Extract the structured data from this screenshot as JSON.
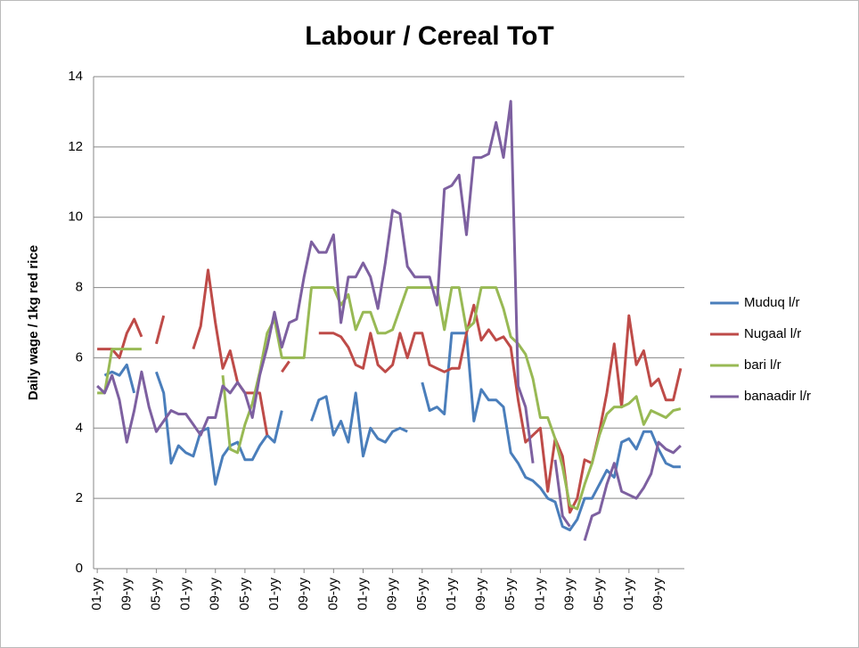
{
  "chart_data": {
    "type": "line",
    "title": "Labour / Cereal ToT",
    "y_label": "Daily wage / 1kg red rice",
    "categories": [
      "01-yy",
      null,
      null,
      null,
      "09-yy",
      null,
      null,
      null,
      "05-yy",
      null,
      null,
      null,
      "01-yy",
      null,
      null,
      null,
      "09-yy",
      null,
      null,
      null,
      "05-yy",
      null,
      null,
      null,
      "01-yy",
      null,
      null,
      null,
      "09-yy",
      null,
      null,
      null,
      "05-yy",
      null,
      null,
      null,
      "01-yy",
      null,
      null,
      null,
      "09-yy",
      null,
      null,
      null,
      "05-yy",
      null,
      null,
      null,
      "01-yy",
      null,
      null,
      null,
      "09-yy",
      null,
      null,
      null,
      "05-yy",
      null,
      null,
      null,
      "01-yy",
      null,
      null,
      null,
      "09-yy",
      null,
      null,
      null,
      "05-yy",
      null,
      null,
      null,
      "01-yy",
      null,
      null,
      null,
      "09-yy",
      null,
      null,
      null
    ],
    "series": [
      {
        "name": "Muduq l/r",
        "color": "#4a7ebb",
        "values": [
          null,
          5.5,
          5.6,
          5.5,
          5.8,
          5.0,
          null,
          null,
          5.6,
          5.0,
          3.0,
          3.5,
          3.3,
          3.2,
          3.9,
          4.0,
          2.4,
          3.2,
          3.5,
          3.6,
          3.1,
          3.1,
          3.5,
          3.8,
          3.6,
          4.5,
          null,
          null,
          null,
          4.2,
          4.8,
          4.9,
          3.8,
          4.2,
          3.6,
          5.0,
          3.2,
          4.0,
          3.7,
          3.6,
          3.9,
          4.0,
          3.9,
          null,
          5.3,
          4.5,
          4.6,
          4.4,
          6.7,
          6.7,
          6.7,
          4.2,
          5.1,
          4.8,
          4.8,
          4.6,
          3.3,
          3.0,
          2.6,
          2.5,
          2.3,
          2.0,
          1.9,
          1.2,
          1.1,
          1.4,
          2.0,
          2.0,
          2.4,
          2.8,
          2.6,
          3.6,
          3.7,
          3.4,
          3.9,
          3.9,
          3.4,
          3.0,
          2.9,
          2.9
        ]
      },
      {
        "name": "Nugaal l/r",
        "color": "#be4b48",
        "values": [
          6.25,
          6.25,
          6.25,
          6.0,
          6.7,
          7.1,
          6.6,
          null,
          6.4,
          7.2,
          null,
          null,
          null,
          6.25,
          6.9,
          8.5,
          7.0,
          5.7,
          6.2,
          5.3,
          5.0,
          5.0,
          5.0,
          3.8,
          null,
          5.6,
          5.9,
          null,
          null,
          null,
          6.7,
          6.7,
          6.7,
          6.6,
          6.3,
          5.8,
          5.7,
          6.7,
          5.8,
          5.6,
          5.8,
          6.7,
          6.0,
          6.7,
          6.7,
          5.8,
          5.7,
          5.6,
          5.7,
          5.7,
          6.7,
          7.5,
          6.5,
          6.8,
          6.5,
          6.6,
          6.3,
          4.8,
          3.6,
          3.8,
          4.0,
          2.2,
          3.7,
          3.2,
          1.6,
          2.0,
          3.1,
          3.0,
          3.9,
          5.0,
          6.4,
          4.6,
          7.2,
          5.8,
          6.2,
          5.2,
          5.4,
          4.8,
          4.8,
          5.7
        ]
      },
      {
        "name": "bari l/r",
        "color": "#98b954",
        "values": [
          5.0,
          5.0,
          6.25,
          6.25,
          6.25,
          6.25,
          6.25,
          null,
          null,
          null,
          null,
          null,
          null,
          null,
          null,
          null,
          null,
          5.5,
          3.4,
          3.3,
          4.1,
          4.7,
          5.6,
          6.7,
          7.1,
          6.0,
          6.0,
          6.0,
          6.0,
          8.0,
          8.0,
          8.0,
          8.0,
          7.5,
          7.8,
          6.8,
          7.3,
          7.3,
          6.7,
          6.7,
          6.8,
          7.4,
          8.0,
          8.0,
          8.0,
          8.0,
          8.0,
          6.8,
          8.0,
          8.0,
          6.8,
          7.0,
          8.0,
          8.0,
          8.0,
          7.4,
          6.6,
          6.4,
          6.1,
          5.4,
          4.3,
          4.3,
          3.7,
          2.9,
          1.8,
          1.7,
          2.4,
          3.0,
          3.8,
          4.4,
          4.6,
          4.6,
          4.7,
          4.9,
          4.1,
          4.5,
          4.4,
          4.3,
          4.5,
          4.55
        ]
      },
      {
        "name": "banaadir l/r",
        "color": "#7d60a0",
        "values": [
          5.2,
          5.0,
          5.5,
          4.8,
          3.6,
          4.5,
          5.6,
          4.6,
          3.9,
          4.2,
          4.5,
          4.4,
          4.4,
          4.1,
          3.8,
          4.3,
          4.3,
          5.2,
          5.0,
          5.3,
          5.0,
          4.3,
          5.5,
          6.3,
          7.3,
          6.3,
          7.0,
          7.1,
          8.3,
          9.3,
          9.0,
          9.0,
          9.5,
          7.0,
          8.3,
          8.3,
          8.7,
          8.3,
          7.4,
          8.7,
          10.2,
          10.1,
          8.6,
          8.3,
          8.3,
          8.3,
          7.5,
          10.8,
          10.9,
          11.2,
          9.5,
          11.7,
          11.7,
          11.8,
          12.7,
          11.7,
          13.3,
          5.2,
          4.6,
          3.0,
          null,
          null,
          3.1,
          1.5,
          1.2,
          null,
          0.8,
          1.5,
          1.6,
          2.4,
          3.0,
          2.2,
          2.1,
          2.0,
          2.3,
          2.7,
          3.6,
          3.4,
          3.3,
          3.5
        ]
      }
    ],
    "ylim": [
      0,
      14
    ],
    "yticks": [
      0,
      2,
      4,
      6,
      8,
      10,
      12,
      14
    ],
    "grid": true,
    "legend": "right"
  }
}
